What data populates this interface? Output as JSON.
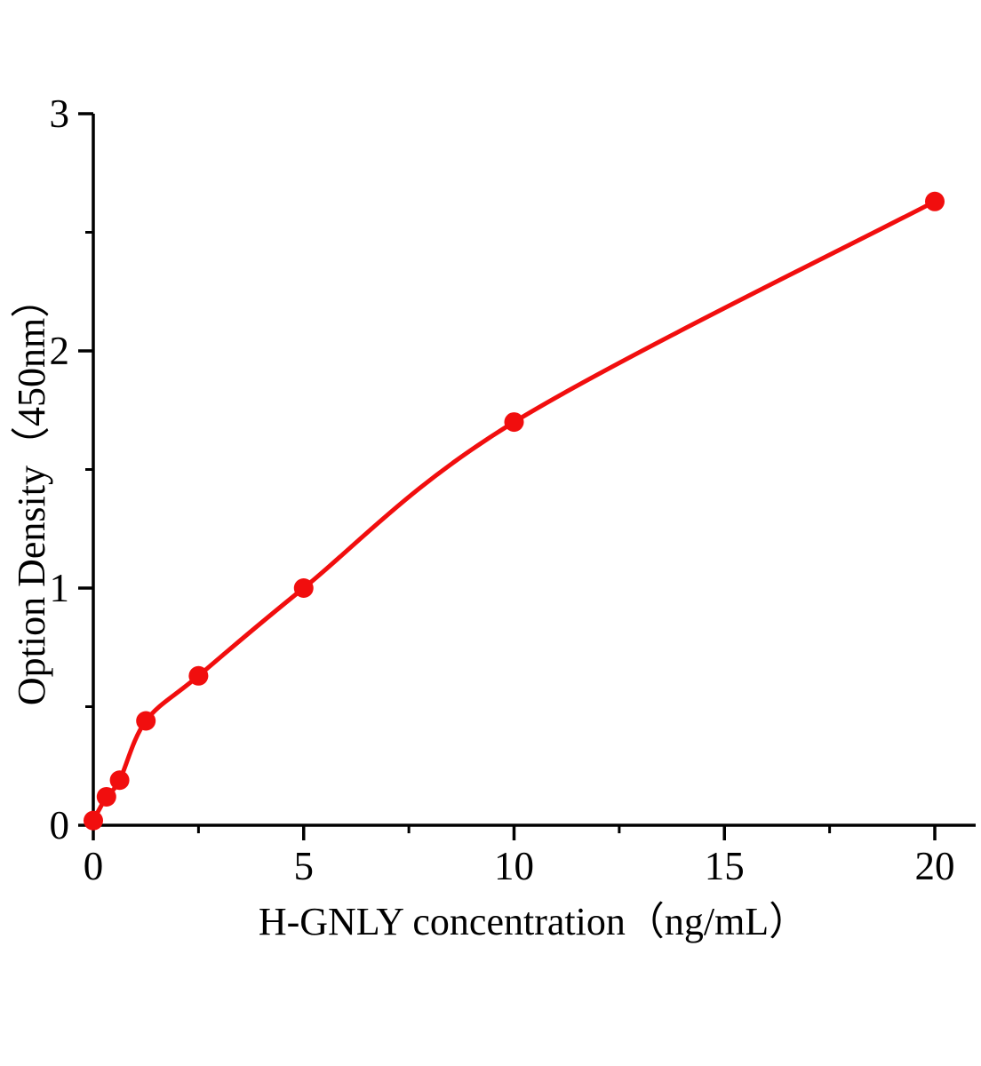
{
  "chart_data": {
    "type": "scatter",
    "title": "",
    "xlabel": "H-GNLY concentration（ng/mL）",
    "ylabel": "Option Density（450nm）",
    "x": [
      0,
      0.3125,
      0.625,
      1.25,
      2.5,
      5,
      10,
      20
    ],
    "y": [
      0.02,
      0.12,
      0.19,
      0.44,
      0.63,
      1.0,
      1.7,
      2.63
    ],
    "fit_curve": "smooth saturating curve through all points, from origin to (20, 2.63)",
    "xlim": [
      0,
      21
    ],
    "ylim": [
      0,
      3
    ],
    "x_major_ticks": [
      0,
      5,
      10,
      15,
      20
    ],
    "x_minor_ticks": [
      2.5,
      7.5,
      12.5,
      17.5
    ],
    "y_major_ticks": [
      0,
      1,
      2,
      3
    ],
    "y_minor_ticks": [
      0.5,
      1.5,
      2.5
    ],
    "grid": false,
    "legend": false,
    "colors": {
      "marker": "#f10e0e",
      "line": "#f10e0e",
      "axis": "#000000",
      "background": "#ffffff"
    }
  }
}
